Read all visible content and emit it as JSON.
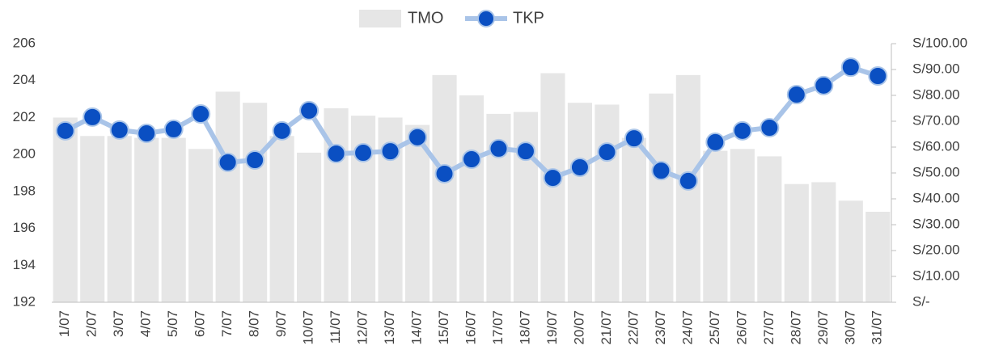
{
  "chart_data": {
    "type": "bar_line",
    "categories": [
      "1/07",
      "2/07",
      "3/07",
      "4/07",
      "5/07",
      "6/07",
      "7/07",
      "8/07",
      "9/07",
      "10/07",
      "11/07",
      "12/07",
      "13/07",
      "14/07",
      "15/07",
      "16/07",
      "17/07",
      "18/07",
      "19/07",
      "20/07",
      "21/07",
      "22/07",
      "23/07",
      "24/07",
      "25/07",
      "26/07",
      "27/07",
      "28/07",
      "29/07",
      "30/07",
      "31/07"
    ],
    "series": [
      {
        "name": "TMO",
        "color": "#e6e6e6",
        "type": "bar",
        "values": [
          202.0,
          201.0,
          201.0,
          200.9,
          200.9,
          200.3,
          203.4,
          202.8,
          201.0,
          200.1,
          202.5,
          202.1,
          202.0,
          201.6,
          204.3,
          203.2,
          202.2,
          202.3,
          204.4,
          202.8,
          202.7,
          200.9,
          203.3,
          204.3,
          200.2,
          200.3,
          199.9,
          198.4,
          198.5,
          197.5,
          196.9
        ]
      },
      {
        "name": "TKP",
        "color": "#a9c4e8",
        "marker_color": "#0a4fc2",
        "type": "line",
        "axis": "y2",
        "values": [
          66.3,
          71.6,
          66.6,
          65.3,
          66.9,
          72.8,
          54.1,
          55.0,
          66.3,
          74.1,
          57.5,
          57.8,
          58.4,
          63.8,
          49.7,
          55.3,
          59.4,
          58.4,
          48.1,
          52.2,
          58.1,
          63.4,
          50.9,
          46.9,
          61.9,
          66.3,
          67.5,
          80.3,
          83.8,
          90.9,
          87.5
        ]
      }
    ],
    "ylim": [
      192,
      206
    ],
    "yticks": [
      192,
      194,
      196,
      198,
      200,
      202,
      204,
      206
    ],
    "y2lim": [
      0,
      100
    ],
    "y2ticks": [
      {
        "value": 0,
        "label": "S/-"
      },
      {
        "value": 10,
        "label": "S/10.00"
      },
      {
        "value": 20,
        "label": "S/20.00"
      },
      {
        "value": 30,
        "label": "S/30.00"
      },
      {
        "value": 40,
        "label": "S/40.00"
      },
      {
        "value": 50,
        "label": "S/50.00"
      },
      {
        "value": 60,
        "label": "S/60.00"
      },
      {
        "value": 70,
        "label": "S/70.00"
      },
      {
        "value": 80,
        "label": "S/80.00"
      },
      {
        "value": 90,
        "label": "S/90.00"
      },
      {
        "value": 100,
        "label": "S/100.00"
      }
    ],
    "legend": "top"
  }
}
